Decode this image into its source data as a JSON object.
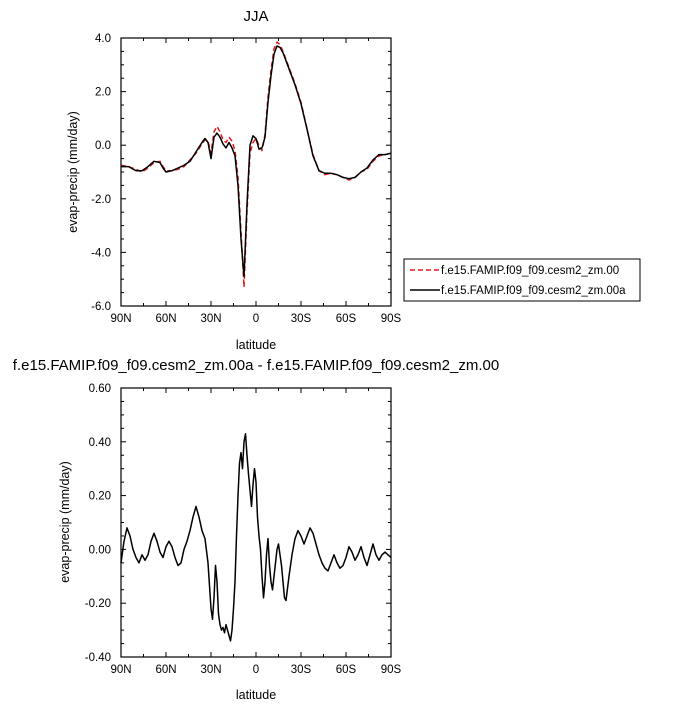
{
  "chart_data": [
    {
      "type": "line",
      "title": "JJA",
      "xlabel": "latitude",
      "ylabel": "evap-precip (mm/day)",
      "xlim": [
        -90,
        90
      ],
      "ylim": [
        -6.0,
        4.0
      ],
      "x_ticks": [
        -90,
        -60,
        -30,
        0,
        30,
        60,
        90
      ],
      "x_tick_labels": [
        "90N",
        "60N",
        "30N",
        "0",
        "30S",
        "60S",
        "90S"
      ],
      "y_ticks": [
        -6,
        -4,
        -2,
        0,
        2,
        4
      ],
      "y_tick_labels": [
        "-6.0",
        "-4.0",
        "-2.0",
        "0.0",
        "2.0",
        "4.0"
      ],
      "grid": false,
      "legend_position": "right",
      "series": [
        {
          "name": "f.e15.FAMIP.f09_f09.cesm2_zm.00",
          "color": "#e0191b",
          "dash": "dashed",
          "x": [
            -90,
            -85,
            -80,
            -76,
            -72,
            -68,
            -64,
            -62,
            -60,
            -56,
            -52,
            -48,
            -44,
            -40,
            -36,
            -34,
            -32,
            -30,
            -28,
            -26,
            -24,
            -22,
            -20,
            -18,
            -16,
            -14,
            -12,
            -10,
            -8,
            -6,
            -4,
            -2,
            0,
            2,
            4,
            6,
            8,
            10,
            12,
            14,
            16,
            18,
            20,
            22,
            24,
            26,
            28,
            30,
            34,
            38,
            42,
            46,
            50,
            54,
            58,
            62,
            66,
            70,
            74,
            78,
            82,
            86,
            90
          ],
          "y": [
            -0.75,
            -0.8,
            -0.9,
            -1.0,
            -0.85,
            -0.65,
            -0.6,
            -0.8,
            -0.95,
            -0.95,
            -0.9,
            -0.8,
            -0.55,
            -0.3,
            0.05,
            0.2,
            0.15,
            -0.3,
            0.5,
            0.7,
            0.5,
            0.2,
            0.1,
            0.3,
            0.15,
            -0.2,
            -1.2,
            -3.2,
            -5.3,
            -2.5,
            -0.3,
            0.1,
            0.25,
            0.0,
            -0.2,
            0.4,
            1.8,
            2.8,
            3.6,
            3.85,
            3.75,
            3.5,
            3.2,
            2.9,
            2.6,
            2.3,
            1.95,
            1.6,
            0.6,
            -0.35,
            -0.95,
            -1.1,
            -1.05,
            -1.1,
            -1.2,
            -1.3,
            -1.2,
            -1.0,
            -0.9,
            -0.6,
            -0.4,
            -0.35,
            -0.3
          ]
        },
        {
          "name": "f.e15.FAMIP.f09_f09.cesm2_zm.00a",
          "color": "#000000",
          "dash": "solid",
          "x": [
            -90,
            -85,
            -80,
            -76,
            -72,
            -68,
            -64,
            -62,
            -60,
            -56,
            -52,
            -48,
            -44,
            -40,
            -36,
            -34,
            -32,
            -30,
            -28,
            -26,
            -24,
            -22,
            -20,
            -18,
            -16,
            -14,
            -12,
            -10,
            -8,
            -6,
            -4,
            -2,
            0,
            2,
            4,
            6,
            8,
            10,
            12,
            14,
            16,
            18,
            20,
            22,
            24,
            26,
            28,
            30,
            34,
            38,
            42,
            46,
            50,
            54,
            58,
            62,
            66,
            70,
            74,
            78,
            82,
            86,
            90
          ],
          "y": [
            -0.8,
            -0.8,
            -0.95,
            -0.95,
            -0.8,
            -0.6,
            -0.65,
            -0.85,
            -1.0,
            -0.95,
            -0.85,
            -0.75,
            -0.6,
            -0.25,
            0.1,
            0.25,
            0.1,
            -0.5,
            0.3,
            0.45,
            0.3,
            0.05,
            -0.1,
            0.1,
            -0.1,
            -0.4,
            -1.5,
            -3.5,
            -4.9,
            -2.2,
            0.0,
            0.35,
            0.25,
            -0.15,
            -0.1,
            0.3,
            1.6,
            2.6,
            3.4,
            3.7,
            3.65,
            3.45,
            3.15,
            2.85,
            2.55,
            2.25,
            1.9,
            1.55,
            0.6,
            -0.4,
            -0.95,
            -1.05,
            -1.05,
            -1.1,
            -1.2,
            -1.25,
            -1.2,
            -1.0,
            -0.85,
            -0.55,
            -0.35,
            -0.35,
            -0.3
          ]
        }
      ]
    },
    {
      "type": "line",
      "title": "f.e15.FAMIP.f09_f09.cesm2_zm.00a - f.e15.FAMIP.f09_f09.cesm2_zm.00",
      "xlabel": "latitude",
      "ylabel": "evap-precip (mm/day)",
      "xlim": [
        -90,
        90
      ],
      "ylim": [
        -0.4,
        0.6
      ],
      "x_ticks": [
        -90,
        -60,
        -30,
        0,
        30,
        60,
        90
      ],
      "x_tick_labels": [
        "90N",
        "60N",
        "30N",
        "0",
        "30S",
        "60S",
        "90S"
      ],
      "y_ticks": [
        -0.4,
        -0.2,
        0.0,
        0.2,
        0.4,
        0.6
      ],
      "y_tick_labels": [
        "-0.40",
        "-0.20",
        "0.00",
        "0.20",
        "0.40",
        "0.60"
      ],
      "grid": false,
      "series": [
        {
          "color": "#000000",
          "x": [
            -90,
            -88,
            -86,
            -84,
            -82,
            -80,
            -78,
            -76,
            -74,
            -72,
            -70,
            -68,
            -66,
            -64,
            -62,
            -60,
            -58,
            -56,
            -54,
            -52,
            -50,
            -48,
            -46,
            -44,
            -42,
            -40,
            -38,
            -36,
            -34,
            -32,
            -30,
            -29,
            -28,
            -27,
            -26,
            -25,
            -24,
            -23,
            -22,
            -21,
            -20,
            -19,
            -18,
            -17,
            -16,
            -15,
            -14,
            -13,
            -12,
            -11,
            -10,
            -9,
            -8,
            -7,
            -6,
            -5,
            -4,
            -3,
            -2,
            -1,
            0,
            1,
            2,
            3,
            4,
            5,
            6,
            7,
            8,
            9,
            10,
            11,
            12,
            13,
            14,
            15,
            16,
            17,
            18,
            19,
            20,
            22,
            24,
            26,
            28,
            30,
            32,
            34,
            36,
            38,
            40,
            42,
            44,
            46,
            48,
            50,
            52,
            54,
            56,
            58,
            60,
            62,
            64,
            66,
            68,
            70,
            72,
            74,
            76,
            78,
            80,
            82,
            84,
            86,
            88,
            90
          ],
          "y": [
            -0.05,
            0.03,
            0.08,
            0.05,
            0.0,
            -0.03,
            -0.05,
            -0.02,
            -0.04,
            -0.02,
            0.03,
            0.06,
            0.03,
            -0.01,
            -0.03,
            0.01,
            0.03,
            0.01,
            -0.03,
            -0.06,
            -0.05,
            0.0,
            0.03,
            0.07,
            0.12,
            0.16,
            0.12,
            0.07,
            0.04,
            -0.05,
            -0.22,
            -0.26,
            -0.18,
            -0.06,
            -0.12,
            -0.24,
            -0.28,
            -0.3,
            -0.29,
            -0.31,
            -0.28,
            -0.3,
            -0.32,
            -0.34,
            -0.3,
            -0.22,
            -0.12,
            0.05,
            0.2,
            0.32,
            0.36,
            0.3,
            0.4,
            0.43,
            0.35,
            0.28,
            0.22,
            0.16,
            0.24,
            0.3,
            0.25,
            0.12,
            0.05,
            0.0,
            -0.1,
            -0.18,
            -0.12,
            -0.02,
            0.04,
            -0.06,
            -0.12,
            -0.15,
            -0.1,
            -0.05,
            0.0,
            0.02,
            -0.02,
            -0.06,
            -0.12,
            -0.18,
            -0.19,
            -0.1,
            -0.02,
            0.04,
            0.07,
            0.05,
            0.02,
            0.05,
            0.08,
            0.06,
            0.02,
            -0.02,
            -0.05,
            -0.07,
            -0.08,
            -0.05,
            -0.02,
            -0.05,
            -0.07,
            -0.06,
            -0.03,
            0.01,
            -0.01,
            -0.04,
            -0.02,
            0.01,
            -0.03,
            -0.06,
            -0.02,
            0.02,
            -0.02,
            -0.04,
            -0.02,
            -0.01,
            -0.02,
            -0.03
          ]
        }
      ]
    }
  ]
}
